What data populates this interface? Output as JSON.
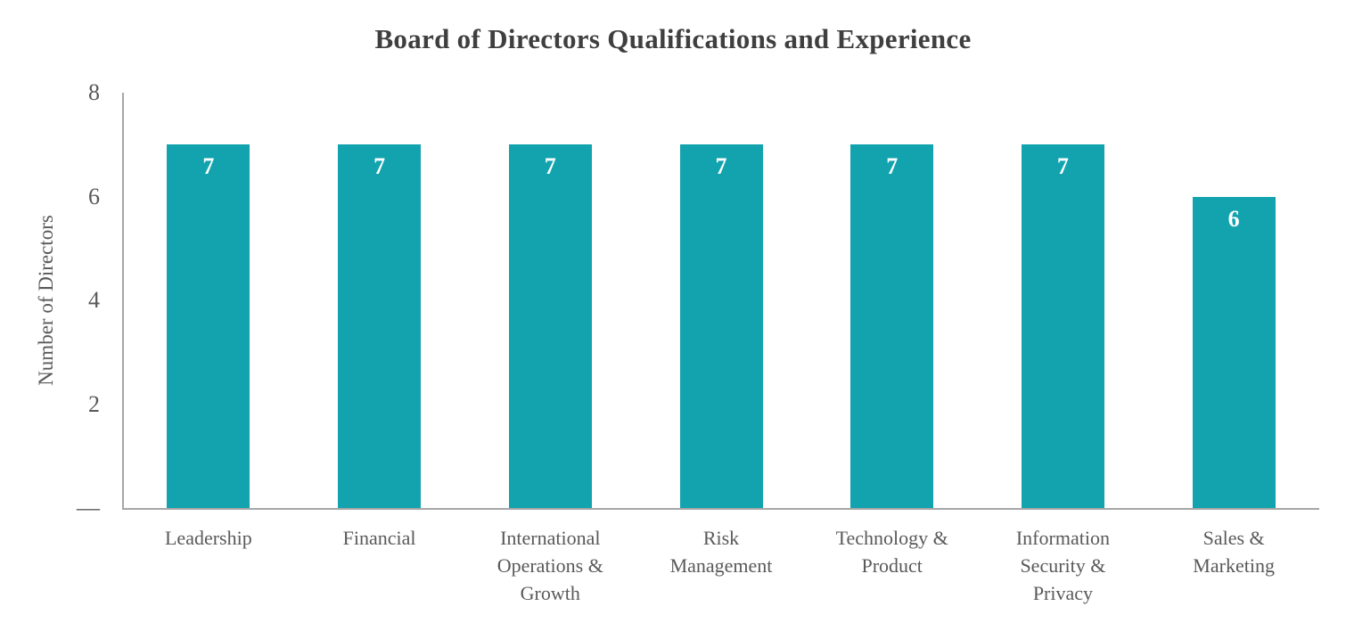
{
  "chart_data": {
    "type": "bar",
    "title": "Board of Directors Qualifications and Experience",
    "ylabel": "Number of Directors",
    "xlabel": "",
    "categories": [
      "Leadership",
      "Financial",
      "International Operations & Growth",
      "Risk Management",
      "Technology & Product",
      "Information Security & Privacy",
      "Sales & Marketing"
    ],
    "category_label_lines": [
      [
        "Leadership"
      ],
      [
        "Financial"
      ],
      [
        "International",
        "Operations &",
        "Growth"
      ],
      [
        "Risk",
        "Management"
      ],
      [
        "Technology &",
        "Product"
      ],
      [
        "Information",
        "Security &",
        "Privacy"
      ],
      [
        "Sales &",
        "Marketing"
      ]
    ],
    "values": [
      7,
      7,
      7,
      7,
      7,
      7,
      6
    ],
    "value_labels": [
      "7",
      "7",
      "7",
      "7",
      "7",
      "7",
      "6"
    ],
    "ylim": [
      0,
      8
    ],
    "yticks": [
      {
        "value": 8,
        "label": "8"
      },
      {
        "value": 6,
        "label": "6"
      },
      {
        "value": 4,
        "label": "4"
      },
      {
        "value": 2,
        "label": "2"
      },
      {
        "value": 0,
        "label": "—"
      }
    ],
    "grid": false,
    "legend": false,
    "bar_color": "#12A3AE",
    "value_label_color": "#FFFFFF"
  },
  "colors": {
    "background": "#FFFFFF",
    "axis_line": "#A6A6A6",
    "tick_text": "#595959",
    "title_text": "#3F3F3F"
  }
}
